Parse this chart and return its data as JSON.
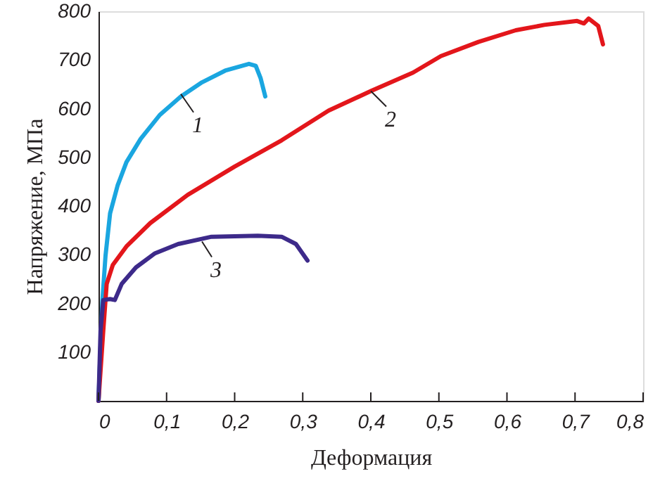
{
  "chart_data": {
    "type": "line",
    "xlabel": "Деформация",
    "ylabel": "Напряжение, МПа",
    "xlim": [
      0,
      0.8
    ],
    "ylim": [
      0,
      800
    ],
    "xticks": [
      0,
      {
        "value": 0.1,
        "label": "0,1"
      },
      {
        "value": 0.2,
        "label": "0,2"
      },
      {
        "value": 0.3,
        "label": "0,3"
      },
      {
        "value": 0.4,
        "label": "0,4"
      },
      {
        "value": 0.5,
        "label": "0,5"
      },
      {
        "value": 0.6,
        "label": "0,6"
      },
      {
        "value": 0.7,
        "label": "0,7"
      },
      {
        "value": 0.8,
        "label": "0,8"
      }
    ],
    "yticks": [
      100,
      200,
      300,
      400,
      500,
      600,
      700,
      800
    ],
    "grid": false,
    "marker": "none",
    "line_style": "solid",
    "series": [
      {
        "color": "#1aa6e0",
        "x": [
          0,
          0.0055,
          0.0103,
          0.017,
          0.028,
          0.041,
          0.062,
          0.09,
          0.121,
          0.152,
          0.186,
          0.221,
          0.231,
          0.238,
          0.245
        ],
        "values": [
          0,
          202,
          298,
          385,
          442,
          490,
          538,
          587,
          625,
          654,
          678,
          692,
          688,
          663,
          625
        ]
      },
      {
        "color": "#e3161b",
        "x": [
          0,
          0.007,
          0.012,
          0.021,
          0.041,
          0.076,
          0.131,
          0.2,
          0.269,
          0.338,
          0.4,
          0.462,
          0.503,
          0.558,
          0.613,
          0.655,
          0.703,
          0.713,
          0.72,
          0.734,
          0.741
        ],
        "values": [
          0,
          144,
          240,
          279,
          317,
          365,
          423,
          481,
          535,
          596,
          636,
          674,
          708,
          737,
          761,
          772,
          780,
          775,
          785,
          770,
          732
        ]
      },
      {
        "color": "#3d2a8a",
        "x": [
          0,
          0.003,
          0.007,
          0.017,
          0.024,
          0.034,
          0.055,
          0.083,
          0.117,
          0.166,
          0.234,
          0.269,
          0.29,
          0.307
        ],
        "values": [
          0,
          144,
          207,
          209,
          207,
          240,
          274,
          303,
          322,
          337,
          339,
          337,
          322,
          288
        ]
      }
    ],
    "annotations": [
      {
        "text": "1",
        "x": 0.121,
        "y": 630
      },
      {
        "text": "2",
        "x": 0.4,
        "y": 636
      },
      {
        "text": "3",
        "x": 0.152,
        "y": 327
      }
    ]
  }
}
